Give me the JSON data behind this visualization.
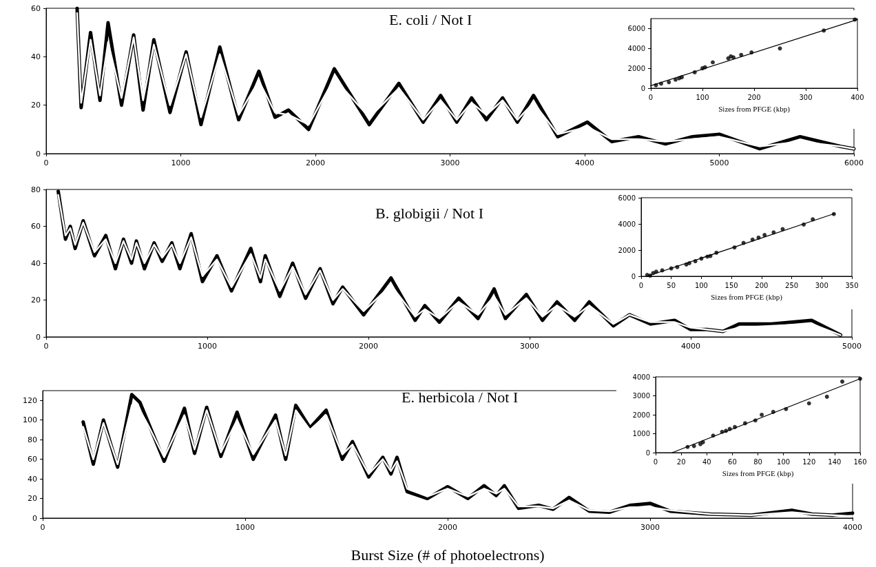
{
  "chart_data": [
    {
      "type": "line",
      "title": "E. coli / Not I",
      "xlim": [
        0,
        6000
      ],
      "xticks": [
        0,
        1000,
        2000,
        3000,
        4000,
        5000,
        6000
      ],
      "ylim": [
        0,
        60
      ],
      "yticks": [
        0,
        20,
        40,
        60
      ],
      "grid": false,
      "series": [
        {
          "color": "#000000",
          "x": [
            230,
            260,
            330,
            400,
            460,
            560,
            650,
            720,
            800,
            920,
            1040,
            1150,
            1290,
            1430,
            1580,
            1700,
            1800,
            1950,
            2140,
            2400,
            2620,
            2800,
            2930,
            3050,
            3160,
            3270,
            3390,
            3500,
            3620,
            3800,
            4020,
            4200,
            4400,
            4600,
            4800,
            5000,
            5300,
            5600,
            5900,
            6000
          ],
          "values": [
            60,
            19,
            50,
            22,
            54,
            20,
            49,
            18,
            47,
            17,
            42,
            12,
            44,
            14,
            34,
            15,
            18,
            10,
            35,
            12,
            29,
            13,
            24,
            13,
            23,
            14,
            23,
            13,
            24,
            7,
            13,
            5,
            7,
            4,
            7,
            8,
            2,
            7,
            3,
            2
          ]
        },
        {
          "color": "#ffffff",
          "x": [
            230,
            260,
            330,
            400,
            460,
            560,
            650,
            720,
            800,
            920,
            1040,
            1150,
            1290,
            1430,
            1580,
            1700,
            1800,
            1950,
            2140,
            2400,
            2620,
            2800,
            2930,
            3050,
            3160,
            3270,
            3390,
            3500,
            3620,
            3800,
            4020,
            4200,
            4400,
            4600,
            4800,
            5000,
            5300,
            5600,
            5900,
            6000
          ],
          "values": [
            58,
            21,
            47,
            24,
            46,
            23,
            48,
            22,
            45,
            20,
            41,
            15,
            41,
            16,
            30,
            17,
            16,
            12,
            31,
            15,
            27,
            14,
            22,
            14,
            21,
            16,
            22,
            14,
            21,
            8,
            11,
            6,
            6,
            5,
            6,
            7,
            3,
            5,
            3,
            2
          ]
        }
      ]
    },
    {
      "type": "scatter",
      "xlabel": "Sizes from PFGE (kbp)",
      "xlim": [
        0,
        400
      ],
      "xticks": [
        0,
        100,
        200,
        300,
        400
      ],
      "ylim": [
        0,
        7000
      ],
      "yticks": [
        0,
        2000,
        4000,
        6000
      ],
      "grid": false,
      "marker": "circle",
      "series": [
        {
          "color": "#000000",
          "x": [
            10,
            20,
            35,
            48,
            55,
            60,
            85,
            100,
            105,
            120,
            150,
            155,
            160,
            175,
            195,
            250,
            335,
            395
          ],
          "values": [
            300,
            450,
            600,
            850,
            1000,
            1100,
            1600,
            2000,
            2100,
            2600,
            3000,
            3200,
            3100,
            3350,
            3600,
            4000,
            5800,
            6900
          ]
        },
        {
          "type": "line",
          "marker": "none",
          "color": "#000000",
          "x": [
            0,
            400
          ],
          "values": [
            250,
            6900
          ]
        }
      ]
    },
    {
      "type": "line",
      "title": "B. globigii / Not I",
      "xlim": [
        0,
        5000
      ],
      "xticks": [
        0,
        1000,
        2000,
        3000,
        4000,
        5000
      ],
      "ylim": [
        0,
        80
      ],
      "yticks": [
        0,
        20,
        40,
        60,
        80
      ],
      "grid": false,
      "series": [
        {
          "color": "#000000",
          "x": [
            75,
            120,
            150,
            180,
            230,
            300,
            370,
            430,
            480,
            530,
            560,
            610,
            670,
            720,
            780,
            830,
            900,
            970,
            1060,
            1150,
            1270,
            1330,
            1360,
            1450,
            1530,
            1610,
            1700,
            1780,
            1840,
            1970,
            2140,
            2290,
            2350,
            2440,
            2560,
            2680,
            2780,
            2850,
            2980,
            3080,
            3170,
            3280,
            3370,
            3520,
            3620,
            3750,
            3900,
            4000,
            4100,
            4200,
            4300,
            4500,
            4750,
            4930
          ],
          "values": [
            79,
            53,
            60,
            48,
            63,
            44,
            55,
            37,
            53,
            40,
            52,
            37,
            51,
            41,
            51,
            37,
            56,
            30,
            44,
            25,
            48,
            30,
            44,
            22,
            40,
            21,
            37,
            18,
            27,
            12,
            32,
            9,
            17,
            8,
            21,
            10,
            26,
            10,
            23,
            9,
            19,
            9,
            19,
            6,
            12,
            7,
            9,
            4,
            4,
            3,
            7,
            7,
            9,
            1
          ]
        },
        {
          "color": "#ffffff",
          "x": [
            75,
            120,
            150,
            180,
            230,
            300,
            370,
            430,
            480,
            530,
            560,
            610,
            670,
            720,
            780,
            830,
            900,
            970,
            1060,
            1150,
            1270,
            1330,
            1360,
            1450,
            1530,
            1610,
            1700,
            1780,
            1840,
            1970,
            2140,
            2290,
            2350,
            2440,
            2560,
            2680,
            2780,
            2850,
            2980,
            3080,
            3170,
            3280,
            3370,
            3520,
            3620,
            3750,
            3900,
            4000,
            4100,
            4200,
            4300,
            4500,
            4750,
            4930
          ],
          "values": [
            77,
            55,
            59,
            50,
            62,
            46,
            53,
            40,
            52,
            42,
            51,
            40,
            50,
            43,
            50,
            40,
            54,
            33,
            42,
            27,
            45,
            32,
            42,
            25,
            38,
            23,
            36,
            20,
            26,
            14,
            28,
            11,
            15,
            10,
            19,
            12,
            22,
            12,
            21,
            11,
            17,
            11,
            17,
            7,
            12,
            8,
            8,
            5,
            4,
            3,
            5,
            6,
            7,
            1
          ]
        }
      ]
    },
    {
      "type": "scatter",
      "xlabel": "Sizes from PFGE (kbp)",
      "xlim": [
        0,
        350
      ],
      "xticks": [
        0,
        50,
        100,
        150,
        200,
        250,
        300,
        350
      ],
      "ylim": [
        0,
        6000
      ],
      "yticks": [
        0,
        2000,
        4000,
        6000
      ],
      "grid": false,
      "marker": "circle",
      "series": [
        {
          "color": "#000000",
          "x": [
            10,
            15,
            20,
            25,
            35,
            50,
            60,
            75,
            80,
            90,
            100,
            110,
            115,
            125,
            155,
            170,
            185,
            195,
            205,
            220,
            235,
            270,
            285,
            320
          ],
          "values": [
            100,
            50,
            250,
            350,
            450,
            600,
            700,
            900,
            1000,
            1150,
            1350,
            1500,
            1550,
            1800,
            2200,
            2550,
            2800,
            2950,
            3150,
            3350,
            3600,
            3950,
            4350,
            4750
          ]
        },
        {
          "type": "line",
          "marker": "none",
          "color": "#000000",
          "x": [
            10,
            322
          ],
          "values": [
            0,
            4800
          ]
        }
      ]
    },
    {
      "type": "line",
      "title": "E. herbicola / Not I",
      "xlabel": "Burst Size (# of photoelectrons)",
      "xlim": [
        0,
        4000
      ],
      "xticks": [
        0,
        1000,
        2000,
        3000,
        4000
      ],
      "ylim": [
        0,
        130
      ],
      "yticks": [
        0,
        20,
        40,
        60,
        80,
        100,
        120
      ],
      "grid": false,
      "series": [
        {
          "color": "#000000",
          "x": [
            200,
            250,
            300,
            370,
            440,
            480,
            520,
            600,
            700,
            750,
            810,
            880,
            960,
            1040,
            1150,
            1200,
            1250,
            1320,
            1400,
            1480,
            1530,
            1610,
            1680,
            1720,
            1750,
            1800,
            1900,
            2000,
            2100,
            2180,
            2240,
            2280,
            2350,
            2450,
            2520,
            2600,
            2700,
            2800,
            2900,
            3000,
            3100,
            3300,
            3500,
            3700,
            3800,
            3900,
            4000
          ],
          "values": [
            98,
            55,
            100,
            52,
            126,
            118,
            98,
            58,
            112,
            66,
            113,
            63,
            108,
            60,
            105,
            60,
            115,
            92,
            110,
            60,
            78,
            42,
            62,
            45,
            62,
            27,
            20,
            32,
            20,
            33,
            23,
            33,
            10,
            13,
            9,
            21,
            7,
            6,
            13,
            15,
            7,
            4,
            3,
            8,
            4,
            3,
            5
          ]
        },
        {
          "color": "#ffffff",
          "x": [
            200,
            250,
            300,
            370,
            440,
            480,
            520,
            600,
            700,
            750,
            810,
            880,
            960,
            1040,
            1150,
            1200,
            1250,
            1320,
            1400,
            1480,
            1530,
            1610,
            1680,
            1720,
            1750,
            1800,
            1900,
            2000,
            2100,
            2180,
            2240,
            2280,
            2350,
            2450,
            2520,
            2600,
            2700,
            2800,
            2900,
            3000,
            3100,
            3300,
            3500,
            3700,
            3800,
            3900,
            4000
          ],
          "values": [
            93,
            60,
            97,
            55,
            115,
            110,
            95,
            62,
            105,
            70,
            110,
            67,
            100,
            65,
            100,
            64,
            110,
            90,
            105,
            65,
            75,
            45,
            60,
            48,
            58,
            30,
            22,
            30,
            22,
            30,
            25,
            30,
            12,
            12,
            10,
            18,
            8,
            7,
            11,
            11,
            8,
            4,
            3,
            6,
            4,
            3,
            2
          ]
        }
      ]
    },
    {
      "type": "scatter",
      "xlabel": "Sizes from PFGE (kbp)",
      "xlim": [
        0,
        160
      ],
      "xticks": [
        0,
        20,
        40,
        60,
        80,
        100,
        120,
        140,
        160
      ],
      "ylim": [
        0,
        4000
      ],
      "yticks": [
        0,
        1000,
        2000,
        3000,
        4000
      ],
      "grid": false,
      "marker": "circle",
      "series": [
        {
          "color": "#000000",
          "x": [
            25,
            30,
            35,
            37,
            45,
            52,
            55,
            58,
            62,
            70,
            78,
            83,
            92,
            102,
            120,
            134,
            146,
            160
          ],
          "values": [
            300,
            350,
            450,
            550,
            900,
            1100,
            1150,
            1250,
            1350,
            1550,
            1700,
            2000,
            2150,
            2300,
            2600,
            2950,
            3750,
            3900
          ]
        },
        {
          "type": "line",
          "marker": "none",
          "color": "#000000",
          "x": [
            13,
            160
          ],
          "values": [
            0,
            3900
          ]
        }
      ]
    }
  ]
}
